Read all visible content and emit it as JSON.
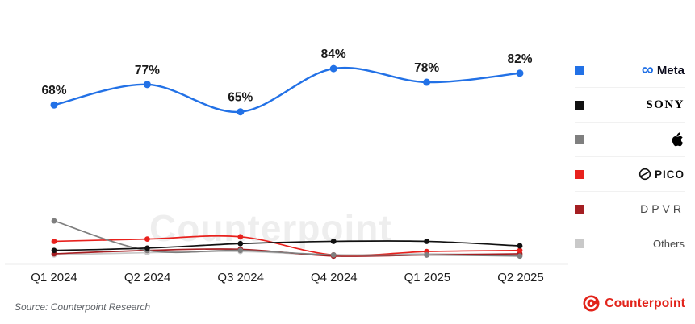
{
  "chart_data": {
    "type": "line",
    "title": "",
    "categories": [
      "Q1 2024",
      "Q2 2024",
      "Q3 2024",
      "Q4 2024",
      "Q1 2025",
      "Q2 2025"
    ],
    "unit": "%",
    "ylim": [
      0,
      100
    ],
    "grid": false,
    "legend_position": "right",
    "series": [
      {
        "name": "Meta",
        "color": "#2271e6",
        "values": [
          68,
          77,
          65,
          84,
          78,
          82
        ],
        "point_labels": [
          "68%",
          "77%",
          "65%",
          "84%",
          "78%",
          "82%"
        ]
      },
      {
        "name": "Sony",
        "color": "#111111",
        "values": [
          4,
          5,
          7,
          8,
          8,
          6
        ]
      },
      {
        "name": "Apple",
        "color": "#7f7f7f",
        "values": [
          17,
          4,
          4,
          2,
          2,
          1.5
        ]
      },
      {
        "name": "PICO",
        "color": "#e8211d",
        "values": [
          8,
          9,
          10,
          2,
          3.5,
          4
        ]
      },
      {
        "name": "DPVR",
        "color": "#a41e22",
        "values": [
          2.5,
          4,
          4.5,
          1.5,
          2,
          2.5
        ]
      },
      {
        "name": "Others",
        "color": "#c9c9c9",
        "values": [
          2,
          3,
          3.5,
          2,
          2.5,
          2
        ]
      }
    ]
  },
  "legend": {
    "items": [
      {
        "label": "Meta",
        "color": "#2271e6",
        "icon": "meta-infinity-icon"
      },
      {
        "label": "SONY",
        "color": "#111111"
      },
      {
        "label": "Apple",
        "color": "#7f7f7f",
        "icon": "apple-logo-icon"
      },
      {
        "label": "PICO",
        "color": "#e8211d",
        "icon": "pico-logo-icon"
      },
      {
        "label": "DPVR",
        "color": "#a41e22"
      },
      {
        "label": "Others",
        "color": "#c9c9c9"
      }
    ]
  },
  "watermark": "Counterpoint",
  "source": "Source: Counterpoint Research",
  "brand": {
    "name": "Counterpoint",
    "color": "#e2231a"
  }
}
